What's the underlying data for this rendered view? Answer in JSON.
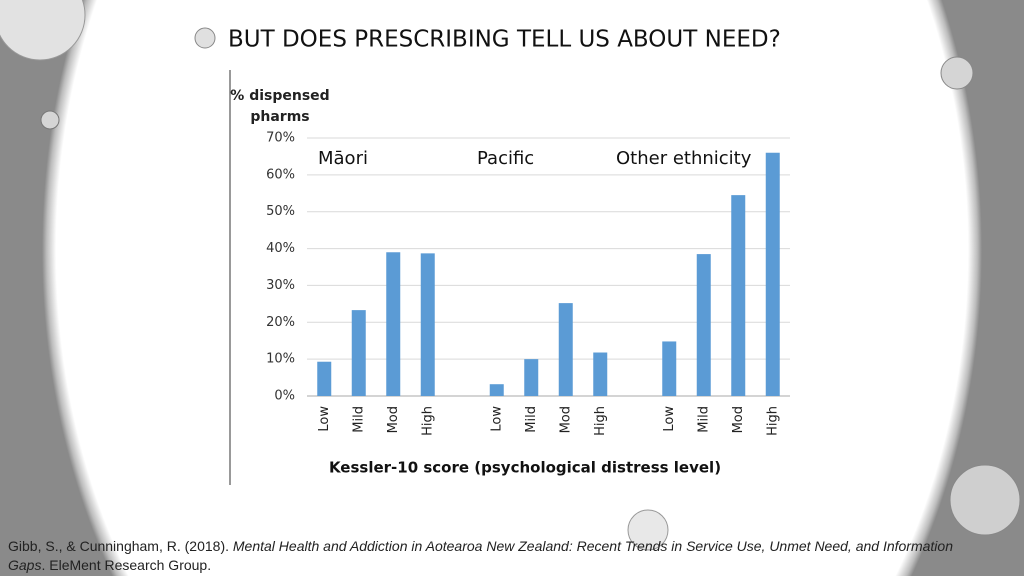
{
  "title": "BUT DOES PRESCRIBING TELL US ABOUT NEED?",
  "citation": {
    "authors": "Gibb, S., & Cunningham, R. (2018). ",
    "work": "Mental Health and Addiction in Aotearoa New Zealand: Recent Trends in Service Use, Unmet Need, and Information Gaps",
    "publisher": ". EleMent Research Group."
  },
  "chart_data": {
    "type": "bar",
    "y_label": "% dispensed pharms",
    "x_label": "Kessler-10 score (psychological distress level)",
    "annotations": [
      "Māori",
      "Pacific",
      "Other ethnicity"
    ],
    "categories": [
      "Low",
      "Mild",
      "Mod",
      "High",
      null,
      "Low",
      "Mild",
      "Mod",
      "High",
      null,
      "Low",
      "Mild",
      "Mod",
      "High"
    ],
    "values": [
      9.3,
      23.3,
      39,
      38.7,
      null,
      3.2,
      10,
      25.2,
      11.8,
      null,
      14.8,
      38.5,
      54.5,
      66
    ],
    "color": "#5b9bd5",
    "ylim": [
      0,
      70
    ],
    "yticks": [
      {
        "value": 0,
        "label": "0%"
      },
      {
        "value": 10,
        "label": "10%"
      },
      {
        "value": 20,
        "label": "20%"
      },
      {
        "value": 30,
        "label": "30%"
      },
      {
        "value": 40,
        "label": "40%"
      },
      {
        "value": 50,
        "label": "50%"
      },
      {
        "value": 60,
        "label": "60%"
      },
      {
        "value": 70,
        "label": "70%"
      }
    ],
    "grid": true
  }
}
